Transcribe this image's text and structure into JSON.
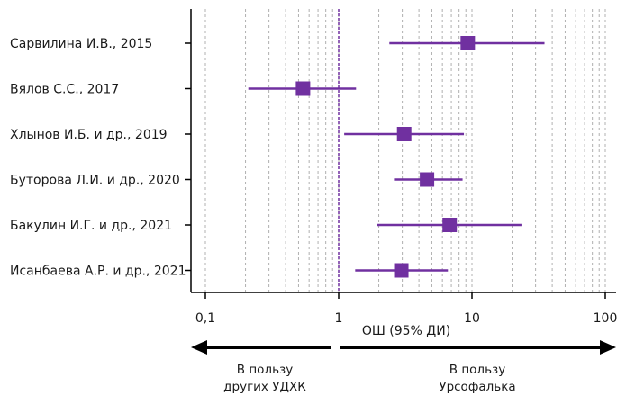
{
  "chart_data": {
    "type": "forest",
    "x_scale": "log",
    "xlim": [
      0.1,
      100
    ],
    "x_ticks": [
      "0,1",
      "1",
      "10",
      "100"
    ],
    "xlabel": "ОШ (95% ДИ)",
    "reference_line": 1,
    "grid": true,
    "studies": [
      {
        "label": "Сарвилина И.В., 2015",
        "or": 9.3,
        "ci_low": 2.4,
        "ci_high": 35
      },
      {
        "label": "Вялов С.С., 2017",
        "or": 0.54,
        "ci_low": 0.21,
        "ci_high": 1.35
      },
      {
        "label": "Хлынов И.Б. и др., 2019",
        "or": 3.1,
        "ci_low": 1.1,
        "ci_high": 8.7
      },
      {
        "label": "Буторова Л.И. и др., 2020",
        "or": 4.6,
        "ci_low": 2.6,
        "ci_high": 8.5
      },
      {
        "label": "Бакулин И.Г. и др., 2021",
        "or": 6.8,
        "ci_low": 1.95,
        "ci_high": 23.5
      },
      {
        "label": "Исанбаева А.Р. и др., 2021",
        "or": 2.95,
        "ci_low": 1.33,
        "ci_high": 6.6
      }
    ],
    "favors_left": [
      "В пользу",
      "других УДХК"
    ],
    "favors_right": [
      "В пользу",
      "Урсофалька"
    ]
  },
  "colors": {
    "marker": "#7030a0",
    "ci_line": "#7030a0",
    "reference_line": "#7030a0",
    "axis": "#000000",
    "grid": "#b0b0b0"
  }
}
